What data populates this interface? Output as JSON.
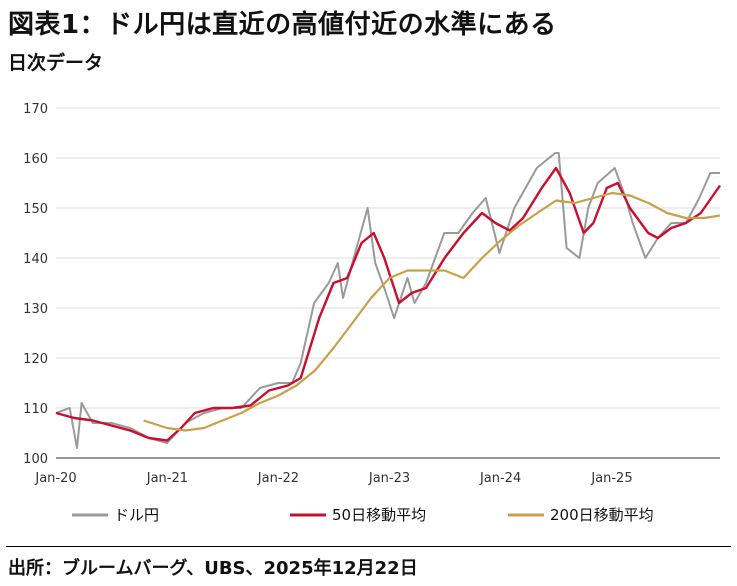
{
  "title": "図表1：ドル円は直近の高値付近の水準にある",
  "subtitle": "日次データ",
  "source": "出所：ブルームバーグ、UBS、2025年12月22日",
  "colors": {
    "spot": "#9a9a9a",
    "ma50": "#c8102e",
    "ma200": "#c9a04a",
    "grid": "#dcdcdc"
  },
  "chart_data": {
    "type": "line",
    "title": "図表1：ドル円は直近の高値付近の水準にある",
    "subtitle": "日次データ",
    "xlabel": "",
    "ylabel": "",
    "ylim": [
      100,
      170
    ],
    "yticks": [
      100,
      110,
      120,
      130,
      140,
      150,
      160,
      170
    ],
    "xlim": [
      "2020-01-01",
      "2025-12-22"
    ],
    "xticks": [
      {
        "label": "Jan-20",
        "date": "2020-01-01"
      },
      {
        "label": "Jan-21",
        "date": "2021-01-01"
      },
      {
        "label": "Jan-22",
        "date": "2022-01-01"
      },
      {
        "label": "Jan-23",
        "date": "2023-01-01"
      },
      {
        "label": "Jan-24",
        "date": "2024-01-01"
      },
      {
        "label": "Jan-25",
        "date": "2025-01-01"
      }
    ],
    "grid": true,
    "legend_position": "bottom",
    "series": [
      {
        "name": "ドル円",
        "key": "spot",
        "x": [
          "2020-01-01",
          "2020-02-15",
          "2020-03-10",
          "2020-03-25",
          "2020-05-01",
          "2020-07-01",
          "2020-09-01",
          "2020-11-01",
          "2020-12-31",
          "2021-03-01",
          "2021-05-01",
          "2021-07-01",
          "2021-09-01",
          "2021-11-01",
          "2021-12-31",
          "2022-02-15",
          "2022-03-15",
          "2022-04-28",
          "2022-06-15",
          "2022-07-15",
          "2022-08-01",
          "2022-09-01",
          "2022-10-21",
          "2022-11-15",
          "2022-12-15",
          "2023-01-16",
          "2023-03-01",
          "2023-03-24",
          "2023-05-01",
          "2023-06-30",
          "2023-08-15",
          "2023-10-01",
          "2023-11-13",
          "2023-12-28",
          "2024-02-15",
          "2024-04-29",
          "2024-06-28",
          "2024-07-10",
          "2024-08-05",
          "2024-09-16",
          "2024-10-15",
          "2024-11-15",
          "2025-01-10",
          "2025-02-15",
          "2025-03-10",
          "2025-04-21",
          "2025-06-01",
          "2025-07-15",
          "2025-09-01",
          "2025-10-15",
          "2025-11-20",
          "2025-12-22"
        ],
        "values": [
          109,
          110,
          102,
          111,
          107,
          107,
          106,
          104,
          103,
          107,
          109,
          110,
          110,
          114,
          115,
          115,
          119,
          131,
          135,
          139,
          132,
          139,
          150,
          139,
          134,
          128,
          136,
          131,
          135,
          145,
          145,
          149,
          152,
          141,
          150,
          158,
          161,
          161,
          142,
          140,
          150,
          155,
          158,
          152,
          147,
          140,
          144,
          147,
          147,
          152,
          157,
          157
        ]
      },
      {
        "name": "50日移動平均",
        "key": "ma50",
        "x": [
          "2020-01-01",
          "2020-03-01",
          "2020-05-01",
          "2020-07-01",
          "2020-09-01",
          "2020-11-01",
          "2020-12-31",
          "2021-02-15",
          "2021-04-01",
          "2021-06-01",
          "2021-08-01",
          "2021-10-01",
          "2021-12-01",
          "2022-02-01",
          "2022-03-15",
          "2022-05-15",
          "2022-07-01",
          "2022-08-15",
          "2022-10-01",
          "2022-11-10",
          "2022-12-15",
          "2023-02-01",
          "2023-03-15",
          "2023-05-01",
          "2023-07-01",
          "2023-09-01",
          "2023-11-01",
          "2023-12-15",
          "2024-01-31",
          "2024-03-15",
          "2024-05-15",
          "2024-07-01",
          "2024-08-15",
          "2024-09-30",
          "2024-11-01",
          "2024-12-15",
          "2025-01-20",
          "2025-03-01",
          "2025-04-30",
          "2025-06-01",
          "2025-07-15",
          "2025-09-01",
          "2025-10-20",
          "2025-12-22"
        ],
        "values": [
          109,
          108,
          107.5,
          106.5,
          105.5,
          104,
          103.5,
          106,
          109,
          110,
          110,
          110.5,
          113.5,
          114.5,
          116,
          128,
          135,
          136,
          143,
          145,
          140,
          131,
          133,
          134,
          140,
          145,
          149,
          147,
          145.5,
          148,
          154,
          158,
          153,
          145,
          147,
          154,
          155,
          150,
          145,
          144,
          146,
          147,
          149,
          154.5
        ]
      },
      {
        "name": "200日移動平均",
        "key": "ma200",
        "x": [
          "2020-10-15",
          "2020-12-31",
          "2021-03-01",
          "2021-05-01",
          "2021-07-01",
          "2021-09-01",
          "2021-11-01",
          "2022-01-01",
          "2022-03-01",
          "2022-05-01",
          "2022-07-01",
          "2022-09-01",
          "2022-11-01",
          "2023-01-01",
          "2023-03-01",
          "2023-05-01",
          "2023-07-01",
          "2023-09-01",
          "2023-11-01",
          "2024-01-01",
          "2024-03-01",
          "2024-05-01",
          "2024-07-01",
          "2024-09-01",
          "2024-11-01",
          "2025-01-01",
          "2025-03-01",
          "2025-05-01",
          "2025-07-01",
          "2025-09-01",
          "2025-11-01",
          "2025-12-22"
        ],
        "values": [
          107.5,
          106,
          105.5,
          106,
          107.5,
          109,
          111,
          112.5,
          114.5,
          117.5,
          122,
          127,
          132,
          136,
          137.5,
          137.5,
          137.5,
          136,
          140,
          143.5,
          146.5,
          149,
          151.5,
          151,
          152,
          153,
          152.5,
          151,
          149,
          148,
          148,
          148.5
        ]
      }
    ]
  }
}
